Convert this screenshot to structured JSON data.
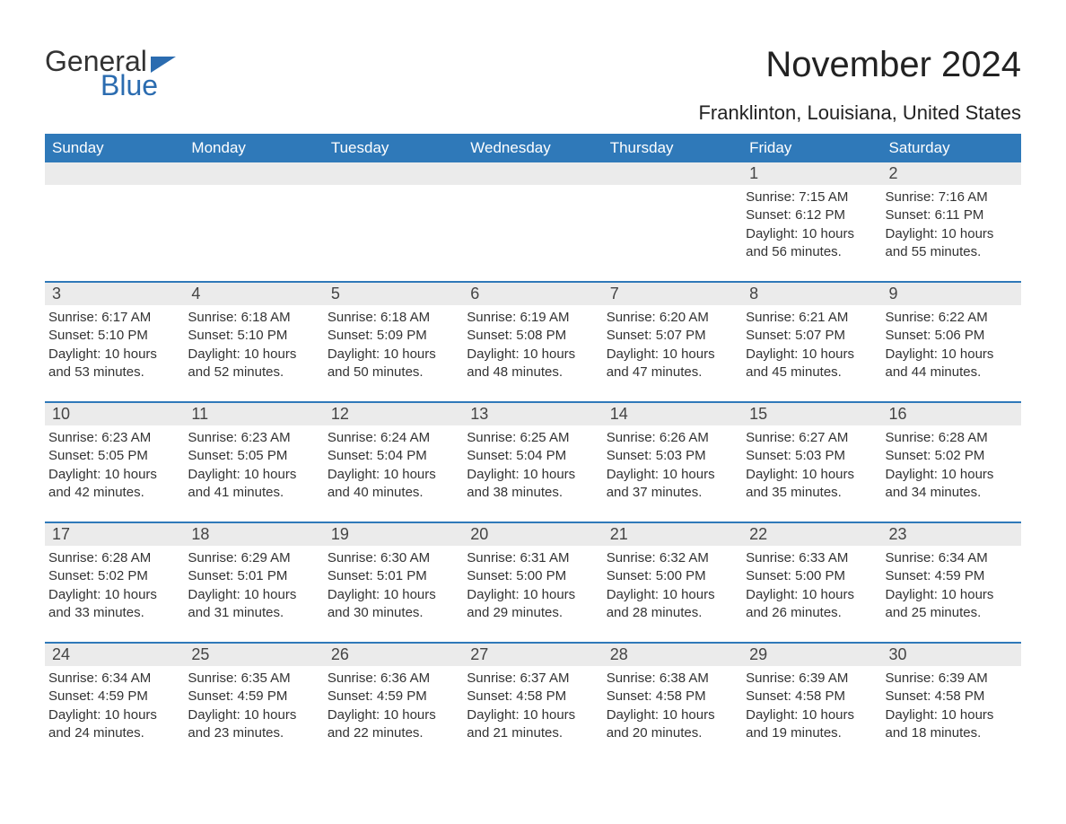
{
  "brand": {
    "name_part1": "General",
    "name_part2": "Blue",
    "color_primary": "#2f79b9",
    "color_text": "#333333",
    "color_daynum_bg": "#ebebeb"
  },
  "header": {
    "month_title": "November 2024",
    "location": "Franklinton, Louisiana, United States"
  },
  "weekdays": [
    "Sunday",
    "Monday",
    "Tuesday",
    "Wednesday",
    "Thursday",
    "Friday",
    "Saturday"
  ],
  "weeks": [
    [
      {
        "empty": true
      },
      {
        "empty": true
      },
      {
        "empty": true
      },
      {
        "empty": true
      },
      {
        "empty": true
      },
      {
        "day": "1",
        "sunrise": "Sunrise: 7:15 AM",
        "sunset": "Sunset: 6:12 PM",
        "daylight": "Daylight: 10 hours and 56 minutes."
      },
      {
        "day": "2",
        "sunrise": "Sunrise: 7:16 AM",
        "sunset": "Sunset: 6:11 PM",
        "daylight": "Daylight: 10 hours and 55 minutes."
      }
    ],
    [
      {
        "day": "3",
        "sunrise": "Sunrise: 6:17 AM",
        "sunset": "Sunset: 5:10 PM",
        "daylight": "Daylight: 10 hours and 53 minutes."
      },
      {
        "day": "4",
        "sunrise": "Sunrise: 6:18 AM",
        "sunset": "Sunset: 5:10 PM",
        "daylight": "Daylight: 10 hours and 52 minutes."
      },
      {
        "day": "5",
        "sunrise": "Sunrise: 6:18 AM",
        "sunset": "Sunset: 5:09 PM",
        "daylight": "Daylight: 10 hours and 50 minutes."
      },
      {
        "day": "6",
        "sunrise": "Sunrise: 6:19 AM",
        "sunset": "Sunset: 5:08 PM",
        "daylight": "Daylight: 10 hours and 48 minutes."
      },
      {
        "day": "7",
        "sunrise": "Sunrise: 6:20 AM",
        "sunset": "Sunset: 5:07 PM",
        "daylight": "Daylight: 10 hours and 47 minutes."
      },
      {
        "day": "8",
        "sunrise": "Sunrise: 6:21 AM",
        "sunset": "Sunset: 5:07 PM",
        "daylight": "Daylight: 10 hours and 45 minutes."
      },
      {
        "day": "9",
        "sunrise": "Sunrise: 6:22 AM",
        "sunset": "Sunset: 5:06 PM",
        "daylight": "Daylight: 10 hours and 44 minutes."
      }
    ],
    [
      {
        "day": "10",
        "sunrise": "Sunrise: 6:23 AM",
        "sunset": "Sunset: 5:05 PM",
        "daylight": "Daylight: 10 hours and 42 minutes."
      },
      {
        "day": "11",
        "sunrise": "Sunrise: 6:23 AM",
        "sunset": "Sunset: 5:05 PM",
        "daylight": "Daylight: 10 hours and 41 minutes."
      },
      {
        "day": "12",
        "sunrise": "Sunrise: 6:24 AM",
        "sunset": "Sunset: 5:04 PM",
        "daylight": "Daylight: 10 hours and 40 minutes."
      },
      {
        "day": "13",
        "sunrise": "Sunrise: 6:25 AM",
        "sunset": "Sunset: 5:04 PM",
        "daylight": "Daylight: 10 hours and 38 minutes."
      },
      {
        "day": "14",
        "sunrise": "Sunrise: 6:26 AM",
        "sunset": "Sunset: 5:03 PM",
        "daylight": "Daylight: 10 hours and 37 minutes."
      },
      {
        "day": "15",
        "sunrise": "Sunrise: 6:27 AM",
        "sunset": "Sunset: 5:03 PM",
        "daylight": "Daylight: 10 hours and 35 minutes."
      },
      {
        "day": "16",
        "sunrise": "Sunrise: 6:28 AM",
        "sunset": "Sunset: 5:02 PM",
        "daylight": "Daylight: 10 hours and 34 minutes."
      }
    ],
    [
      {
        "day": "17",
        "sunrise": "Sunrise: 6:28 AM",
        "sunset": "Sunset: 5:02 PM",
        "daylight": "Daylight: 10 hours and 33 minutes."
      },
      {
        "day": "18",
        "sunrise": "Sunrise: 6:29 AM",
        "sunset": "Sunset: 5:01 PM",
        "daylight": "Daylight: 10 hours and 31 minutes."
      },
      {
        "day": "19",
        "sunrise": "Sunrise: 6:30 AM",
        "sunset": "Sunset: 5:01 PM",
        "daylight": "Daylight: 10 hours and 30 minutes."
      },
      {
        "day": "20",
        "sunrise": "Sunrise: 6:31 AM",
        "sunset": "Sunset: 5:00 PM",
        "daylight": "Daylight: 10 hours and 29 minutes."
      },
      {
        "day": "21",
        "sunrise": "Sunrise: 6:32 AM",
        "sunset": "Sunset: 5:00 PM",
        "daylight": "Daylight: 10 hours and 28 minutes."
      },
      {
        "day": "22",
        "sunrise": "Sunrise: 6:33 AM",
        "sunset": "Sunset: 5:00 PM",
        "daylight": "Daylight: 10 hours and 26 minutes."
      },
      {
        "day": "23",
        "sunrise": "Sunrise: 6:34 AM",
        "sunset": "Sunset: 4:59 PM",
        "daylight": "Daylight: 10 hours and 25 minutes."
      }
    ],
    [
      {
        "day": "24",
        "sunrise": "Sunrise: 6:34 AM",
        "sunset": "Sunset: 4:59 PM",
        "daylight": "Daylight: 10 hours and 24 minutes."
      },
      {
        "day": "25",
        "sunrise": "Sunrise: 6:35 AM",
        "sunset": "Sunset: 4:59 PM",
        "daylight": "Daylight: 10 hours and 23 minutes."
      },
      {
        "day": "26",
        "sunrise": "Sunrise: 6:36 AM",
        "sunset": "Sunset: 4:59 PM",
        "daylight": "Daylight: 10 hours and 22 minutes."
      },
      {
        "day": "27",
        "sunrise": "Sunrise: 6:37 AM",
        "sunset": "Sunset: 4:58 PM",
        "daylight": "Daylight: 10 hours and 21 minutes."
      },
      {
        "day": "28",
        "sunrise": "Sunrise: 6:38 AM",
        "sunset": "Sunset: 4:58 PM",
        "daylight": "Daylight: 10 hours and 20 minutes."
      },
      {
        "day": "29",
        "sunrise": "Sunrise: 6:39 AM",
        "sunset": "Sunset: 4:58 PM",
        "daylight": "Daylight: 10 hours and 19 minutes."
      },
      {
        "day": "30",
        "sunrise": "Sunrise: 6:39 AM",
        "sunset": "Sunset: 4:58 PM",
        "daylight": "Daylight: 10 hours and 18 minutes."
      }
    ]
  ]
}
